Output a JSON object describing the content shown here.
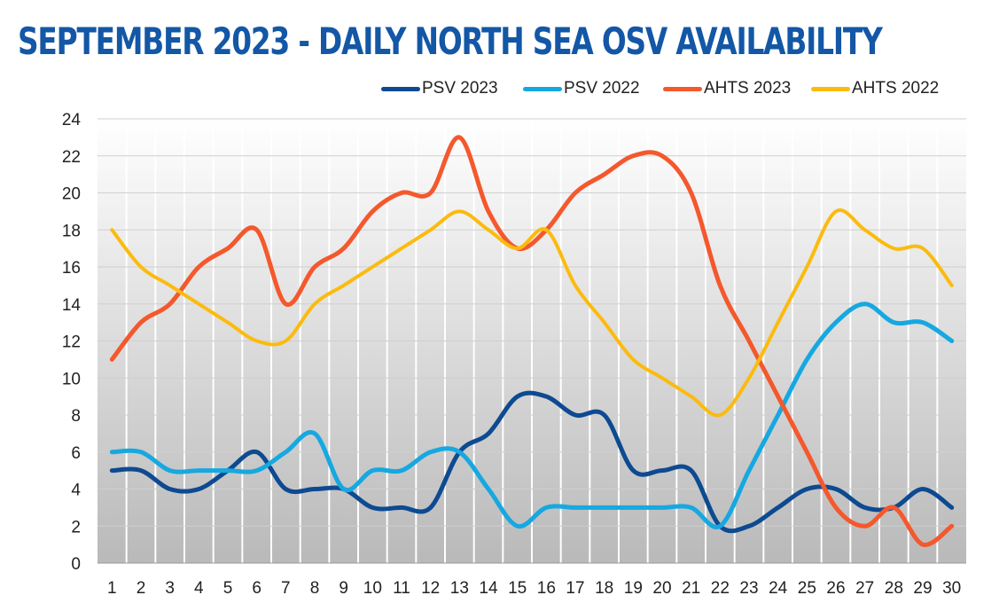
{
  "title": "SEPTEMBER 2023 - DAILY NORTH SEA OSV AVAILABILITY",
  "chart_data": {
    "type": "line",
    "x": [
      1,
      2,
      3,
      4,
      5,
      6,
      7,
      8,
      9,
      10,
      11,
      12,
      13,
      14,
      15,
      16,
      17,
      18,
      19,
      20,
      21,
      22,
      23,
      24,
      25,
      26,
      27,
      28,
      29,
      30
    ],
    "ylim": [
      0,
      24
    ],
    "yticks": [
      0,
      2,
      4,
      6,
      8,
      10,
      12,
      14,
      16,
      18,
      20,
      22,
      24
    ],
    "grid": true,
    "legend_position": "top-right",
    "series": [
      {
        "name": "PSV 2023",
        "color": "#0d4a91",
        "values": [
          5,
          5,
          4,
          4,
          5,
          6,
          4,
          4,
          4,
          3,
          3,
          3,
          6,
          7,
          9,
          9,
          8,
          8,
          5,
          5,
          5,
          2,
          2,
          3,
          4,
          4,
          3,
          3,
          4,
          3
        ]
      },
      {
        "name": "PSV 2022",
        "color": "#16a8e0",
        "values": [
          6,
          6,
          5,
          5,
          5,
          5,
          6,
          7,
          4,
          5,
          5,
          6,
          6,
          4,
          2,
          3,
          3,
          3,
          3,
          3,
          3,
          2,
          5,
          8,
          11,
          13,
          14,
          13,
          13,
          12
        ]
      },
      {
        "name": "AHTS 2023",
        "color": "#f4582d",
        "values": [
          11,
          13,
          14,
          16,
          17,
          18,
          14,
          16,
          17,
          19,
          20,
          20,
          23,
          19,
          17,
          18,
          20,
          21,
          22,
          22,
          20,
          15,
          12,
          9,
          6,
          3,
          2,
          3,
          1,
          2
        ]
      },
      {
        "name": "AHTS 2022",
        "color": "#fbbb0e",
        "values": [
          18,
          16,
          15,
          14,
          13,
          12,
          12,
          14,
          15,
          16,
          17,
          18,
          19,
          18,
          17,
          18,
          15,
          13,
          11,
          10,
          9,
          8,
          10,
          13,
          16,
          19,
          18,
          17,
          17,
          15
        ]
      }
    ]
  }
}
